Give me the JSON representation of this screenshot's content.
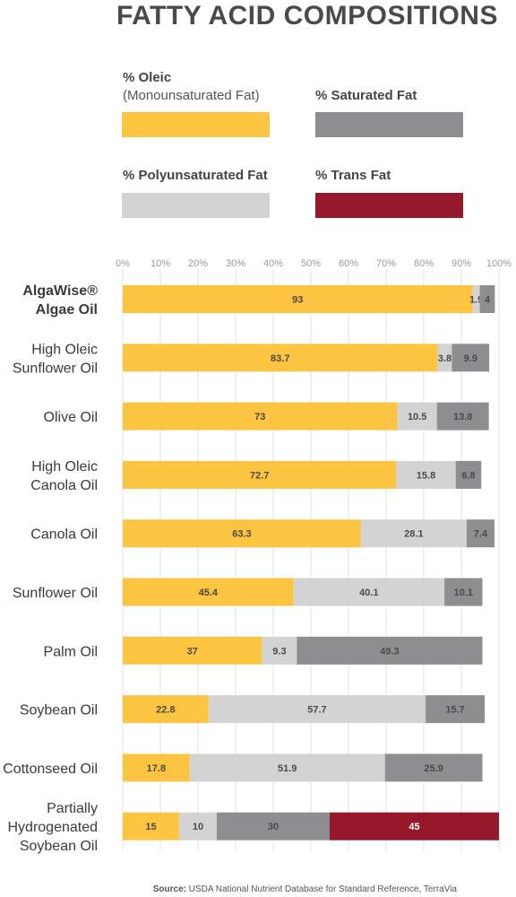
{
  "title": "FATTY ACID COMPOSITIONS",
  "legend": [
    {
      "label": "% Oleic",
      "sublabel": "(Monounsaturated Fat)",
      "color": "#FDC441"
    },
    {
      "label": "% Saturated Fat",
      "color": "#8E8E90"
    },
    {
      "label": "% Polyunsaturated Fat",
      "color": "#D3D3D4"
    },
    {
      "label": "% Trans Fat",
      "color": "#94182A"
    }
  ],
  "source": {
    "label": "Source:",
    "text": "USDA National Nutrient Database for Standard Reference, TerraVia"
  },
  "chart_data": {
    "type": "bar",
    "orientation": "horizontal",
    "stacked": true,
    "x_ticks": [
      "0%",
      "10%",
      "20%",
      "30%",
      "40%",
      "50%",
      "60%",
      "70%",
      "80%",
      "90%",
      "100%"
    ],
    "xlim": [
      0,
      100
    ],
    "categories": [
      [
        "AlgaWise®",
        "Algae Oil"
      ],
      [
        "High Oleic",
        "Sunflower Oil"
      ],
      [
        "Olive Oil"
      ],
      [
        "High Oleic",
        "Canola Oil"
      ],
      [
        "Canola Oil"
      ],
      [
        "Sunflower Oil"
      ],
      [
        "Palm Oil"
      ],
      [
        "Soybean Oil"
      ],
      [
        "Cottonseed Oil"
      ],
      [
        "Partially",
        "Hydrogenated",
        "Soybean Oil"
      ]
    ],
    "series": [
      {
        "name": "% Oleic",
        "color": "#FDC441",
        "values": [
          93,
          83.7,
          73,
          72.7,
          63.3,
          45.4,
          37,
          22.8,
          17.8,
          15
        ]
      },
      {
        "name": "% Polyunsaturated Fat",
        "color": "#D3D3D4",
        "values": [
          1.9,
          3.8,
          10.5,
          15.8,
          28.1,
          40.1,
          9.3,
          57.7,
          51.9,
          10
        ]
      },
      {
        "name": "% Saturated Fat",
        "color": "#8E8E90",
        "values": [
          4,
          9.9,
          13.8,
          6.8,
          7.4,
          10.1,
          49.3,
          15.7,
          25.9,
          30
        ]
      },
      {
        "name": "% Trans Fat",
        "color": "#94182A",
        "values": [
          0,
          0,
          0,
          0,
          0,
          0,
          0,
          0,
          0,
          45
        ]
      }
    ],
    "labels": [
      [
        "93",
        "1.9",
        "4",
        ""
      ],
      [
        "83.7",
        "3.8",
        "9.9",
        ""
      ],
      [
        "73",
        "10.5",
        "13.8",
        ""
      ],
      [
        "72.7",
        "15.8",
        "6.8",
        ""
      ],
      [
        "63.3",
        "28.1",
        "7.4",
        ""
      ],
      [
        "45.4",
        "40.1",
        "10.1",
        ""
      ],
      [
        "37",
        "9.3",
        "49.3",
        ""
      ],
      [
        "22.8",
        "57.7",
        "15.7",
        ""
      ],
      [
        "17.8",
        "51.9",
        "25.9",
        ""
      ],
      [
        "15",
        "10",
        "30",
        "45"
      ]
    ],
    "bold_first_category": true,
    "grid": true
  }
}
